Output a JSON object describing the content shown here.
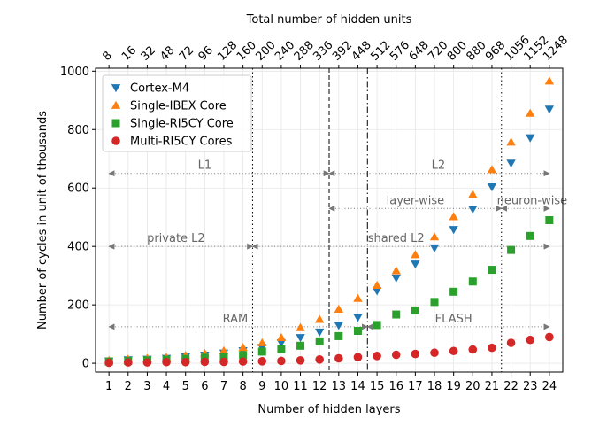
{
  "chart_data": {
    "type": "scatter",
    "title": "",
    "xlabel": "Number of hidden layers",
    "ylabel": "Number of cycles in unit of thousands",
    "top_xlabel": "Total number of hidden units",
    "x": [
      1,
      2,
      3,
      4,
      5,
      6,
      7,
      8,
      9,
      10,
      11,
      12,
      13,
      14,
      15,
      16,
      17,
      18,
      19,
      20,
      21,
      22,
      23,
      24
    ],
    "top_ticks": [
      "8",
      "16",
      "32",
      "48",
      "72",
      "96",
      "128",
      "160",
      "200",
      "240",
      "288",
      "336",
      "392",
      "448",
      "512",
      "576",
      "648",
      "720",
      "800",
      "880",
      "968",
      "1056",
      "1152",
      "1248"
    ],
    "xlim": [
      0.3,
      24.7
    ],
    "ylim": [
      -30,
      1010
    ],
    "yticks": [
      0,
      200,
      400,
      600,
      800,
      1000
    ],
    "grid": true,
    "legend_position": "top-left",
    "series": [
      {
        "name": "Cortex-M4",
        "marker": "triangle-down",
        "color": "#1f77b4",
        "values": [
          8,
          12,
          14,
          17,
          22,
          28,
          35,
          43,
          54,
          70,
          88,
          107,
          130,
          157,
          248,
          292,
          340,
          395,
          458,
          528,
          604,
          685,
          772,
          870
        ]
      },
      {
        "name": "Single-IBEX Core",
        "marker": "triangle-up",
        "color": "#ff7f0e",
        "values": [
          10,
          14,
          17,
          20,
          27,
          34,
          43,
          54,
          70,
          88,
          122,
          150,
          185,
          222,
          267,
          317,
          372,
          433,
          502,
          578,
          663,
          757,
          856,
          966
        ]
      },
      {
        "name": "Single-RI5CY Core",
        "marker": "square",
        "color": "#2ca02c",
        "values": [
          6,
          8,
          10,
          12,
          15,
          19,
          23,
          28,
          40,
          48,
          60,
          75,
          93,
          111,
          131,
          167,
          181,
          210,
          245,
          280,
          320,
          388,
          436,
          490
        ]
      },
      {
        "name": "Multi-RI5CY Cores",
        "marker": "circle",
        "color": "#d62728",
        "values": [
          2,
          3,
          3,
          4,
          4,
          5,
          5,
          6,
          7,
          8,
          10,
          13,
          17,
          21,
          25,
          29,
          32,
          36,
          42,
          47,
          53,
          70,
          80,
          90
        ]
      }
    ],
    "vlines": [
      {
        "x": 8.5,
        "style": "dotted"
      },
      {
        "x": 12.5,
        "style": "dashed"
      },
      {
        "x": 14.5,
        "style": "dashdot"
      },
      {
        "x": 21.5,
        "style": "dotted"
      }
    ],
    "annotations": [
      {
        "text": "L1",
        "y": 650,
        "x_start": 1,
        "x_end": 12.5,
        "label_x": 6
      },
      {
        "text": "L2",
        "y": 650,
        "x_start": 12.5,
        "x_end": 24,
        "label_x": 18.2
      },
      {
        "text": "layer-wise",
        "y": 530,
        "x_start": 12.5,
        "x_end": 21.5,
        "label_x": 17
      },
      {
        "text": "neuron-wise",
        "y": 530,
        "x_start": 21.5,
        "x_end": 24,
        "label_x": 23.1
      },
      {
        "text": "private L2",
        "y": 400,
        "x_start": 1,
        "x_end": 8.5,
        "label_x": 4.5
      },
      {
        "text": "shared L2",
        "y": 400,
        "x_start": 8.5,
        "x_end": 24,
        "label_x": 16
      },
      {
        "text": "RAM",
        "y": 125,
        "x_start": 1,
        "x_end": 14.5,
        "label_x": 7.6
      },
      {
        "text": "FLASH",
        "y": 125,
        "x_start": 14.5,
        "x_end": 24,
        "label_x": 19
      }
    ]
  }
}
